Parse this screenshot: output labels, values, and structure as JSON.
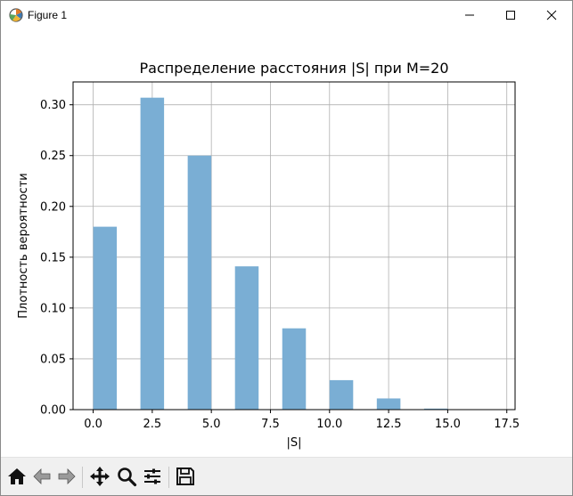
{
  "window": {
    "title": "Figure 1"
  },
  "toolbar": {
    "buttons": [
      "home-icon",
      "back-icon",
      "forward-icon",
      "pan-icon",
      "zoom-icon",
      "configure-subplots-icon",
      "save-icon"
    ]
  },
  "chart_data": {
    "type": "bar",
    "title": "Распределение расстояния |S| при M=20",
    "xlabel": "|S|",
    "ylabel": "Плотность вероятности",
    "bar_color": "#7aaed4",
    "grid": true,
    "xlim": [
      -0.85,
      17.85
    ],
    "ylim": [
      0,
      0.3225
    ],
    "x_ticks": [
      0.0,
      2.5,
      5.0,
      7.5,
      10.0,
      12.5,
      15.0,
      17.5
    ],
    "x_tick_labels": [
      "0.0",
      "2.5",
      "5.0",
      "7.5",
      "10.0",
      "12.5",
      "15.0",
      "17.5"
    ],
    "y_ticks": [
      0.0,
      0.05,
      0.1,
      0.15,
      0.2,
      0.25,
      0.3
    ],
    "y_tick_labels": [
      "0.00",
      "0.05",
      "0.10",
      "0.15",
      "0.20",
      "0.25",
      "0.30"
    ],
    "bar_width": 1.0,
    "bars": [
      {
        "x": 0.5,
        "value": 0.18
      },
      {
        "x": 2.5,
        "value": 0.307
      },
      {
        "x": 4.5,
        "value": 0.25
      },
      {
        "x": 6.5,
        "value": 0.141
      },
      {
        "x": 8.5,
        "value": 0.08
      },
      {
        "x": 10.5,
        "value": 0.029
      },
      {
        "x": 12.5,
        "value": 0.011
      },
      {
        "x": 14.5,
        "value": 0.001
      }
    ]
  }
}
